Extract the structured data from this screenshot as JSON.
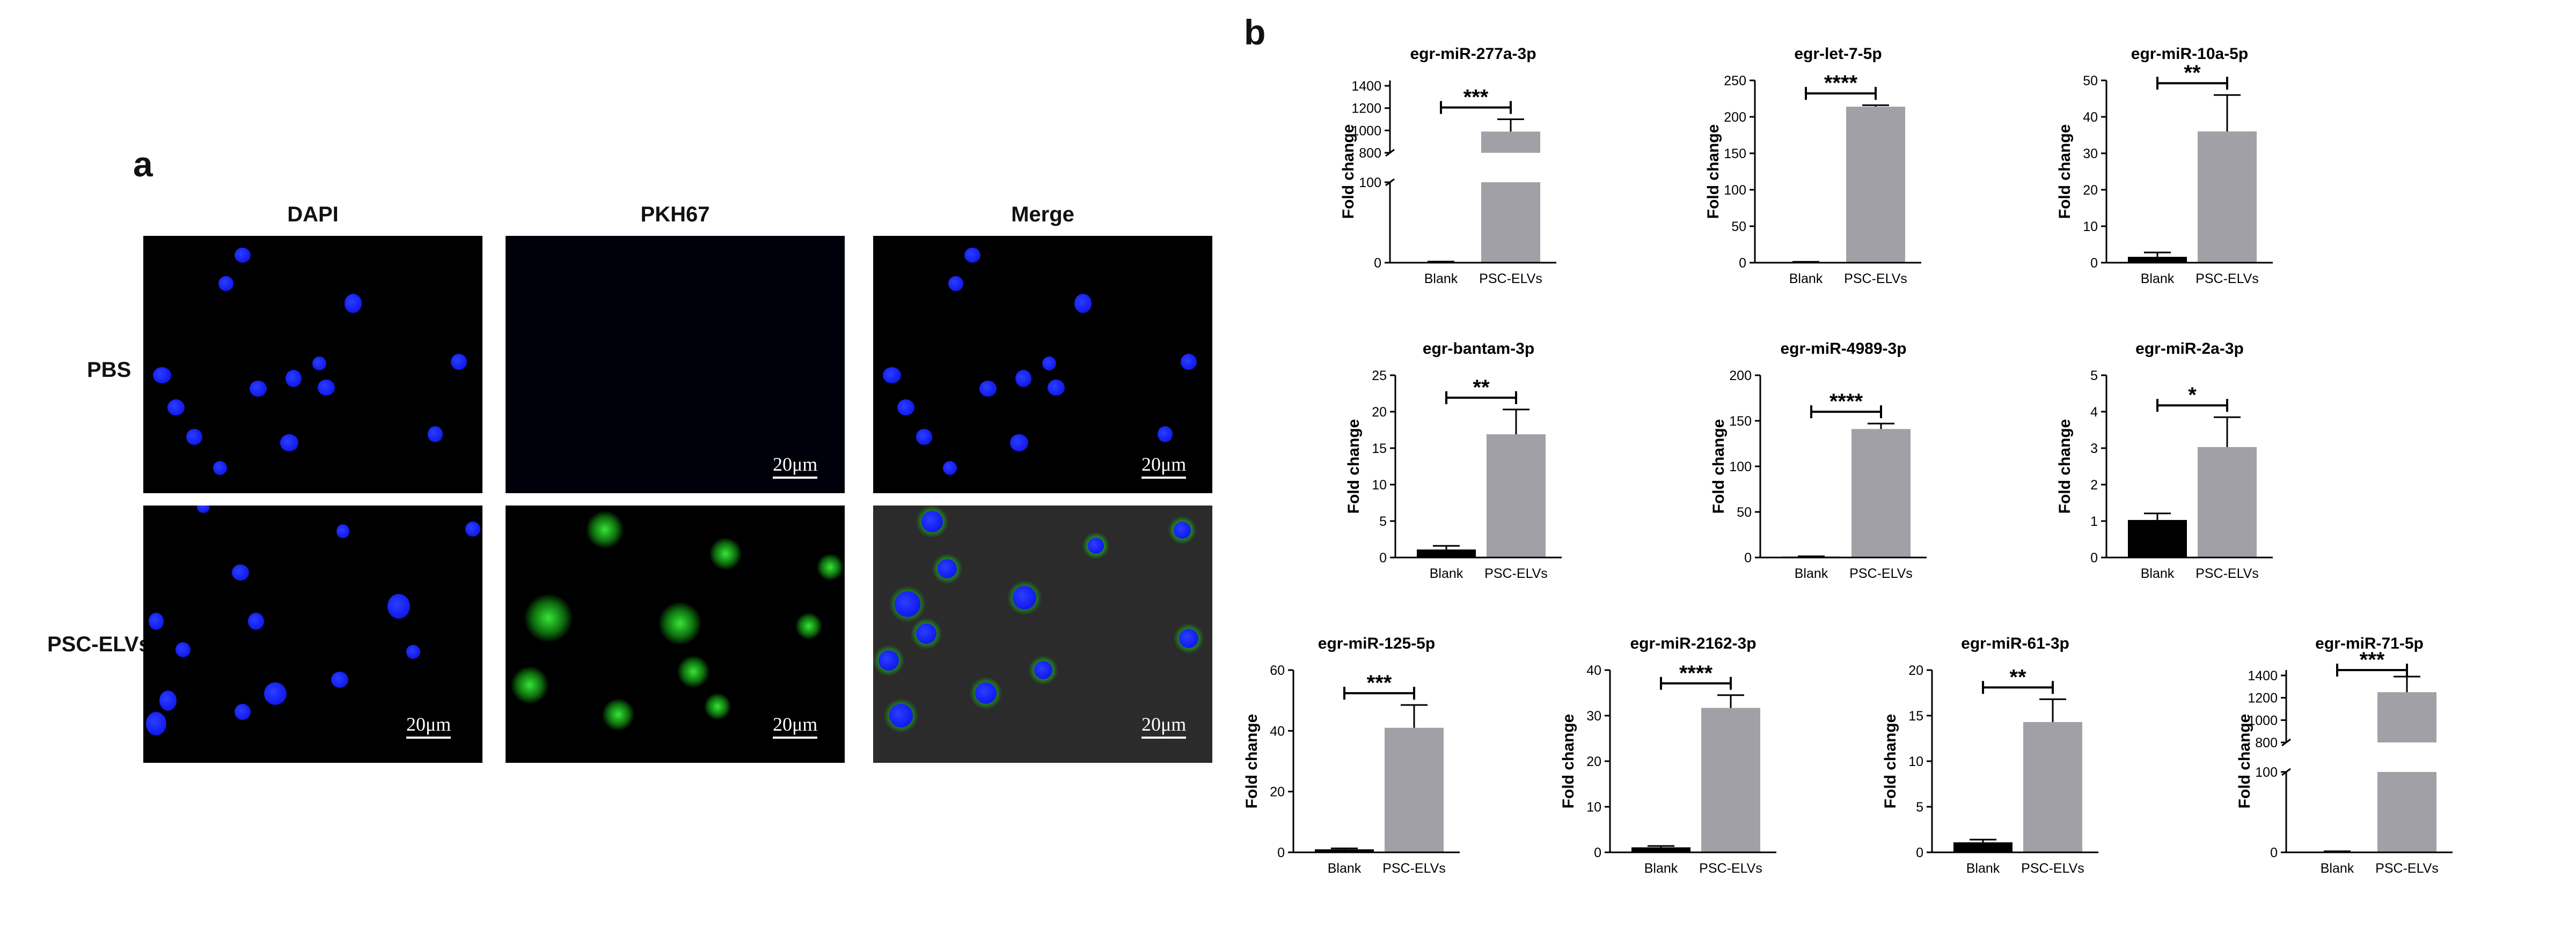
{
  "panel_a": {
    "letter": "a",
    "columns": [
      "DAPI",
      "PKH67",
      "Merge"
    ],
    "rows": [
      "PBS",
      "PSC-ELVs"
    ],
    "scale_bar": "20μm"
  },
  "panel_b": {
    "letter": "b"
  },
  "colors": {
    "blank": "#000000",
    "psc": "#a0a0a6",
    "dapi": "#1a24ff",
    "pkh67": "#2fdc2f"
  },
  "chart_data": [
    {
      "type": "bar",
      "title": "egr-miR-277a-3p",
      "ylabel": "Fold change",
      "categories": [
        "Blank",
        "PSC-ELVs"
      ],
      "values": [
        1,
        990
      ],
      "errors": [
        0.3,
        110
      ],
      "significance": "***",
      "broken_axis": true,
      "ylim": [
        0,
        1500
      ],
      "lower_ticks": [
        "0",
        "100"
      ],
      "upper_ticks": [
        "800",
        "1000",
        "1200",
        "1400"
      ]
    },
    {
      "type": "bar",
      "title": "egr-let-7-5p",
      "ylabel": "Fold change",
      "categories": [
        "Blank",
        "PSC-ELVs"
      ],
      "values": [
        1,
        214
      ],
      "errors": [
        0.2,
        2
      ],
      "significance": "****",
      "ylim": [
        0,
        250
      ],
      "ticks": [
        "0",
        "50",
        "100",
        "150",
        "200",
        "250"
      ]
    },
    {
      "type": "bar",
      "title": "egr-miR-10a-5p",
      "ylabel": "Fold change",
      "categories": [
        "Blank",
        "PSC-ELVs"
      ],
      "values": [
        1.6,
        36
      ],
      "errors": [
        1.2,
        10
      ],
      "significance": "**",
      "ylim": [
        0,
        50
      ],
      "ticks": [
        "0",
        "10",
        "20",
        "30",
        "40",
        "50"
      ]
    },
    {
      "type": "bar",
      "title": "egr-bantam-3p",
      "ylabel": "Fold change",
      "categories": [
        "Blank",
        "PSC-ELVs"
      ],
      "values": [
        1.1,
        16.9
      ],
      "errors": [
        0.5,
        3.4
      ],
      "significance": "**",
      "ylim": [
        0,
        25
      ],
      "ticks": [
        "0",
        "5",
        "10",
        "15",
        "20",
        "25"
      ]
    },
    {
      "type": "bar",
      "title": "egr-miR-4989-3p",
      "ylabel": "Fold change",
      "categories": [
        "Blank",
        "PSC-ELVs"
      ],
      "values": [
        1,
        141
      ],
      "errors": [
        0.3,
        6
      ],
      "significance": "****",
      "ylim": [
        0,
        200
      ],
      "ticks": [
        "0",
        "50",
        "100",
        "150",
        "200"
      ]
    },
    {
      "type": "bar",
      "title": "egr-miR-2a-3p",
      "ylabel": "Fold change",
      "categories": [
        "Blank",
        "PSC-ELVs"
      ],
      "values": [
        1.03,
        3.03
      ],
      "errors": [
        0.18,
        0.82
      ],
      "significance": "*",
      "ylim": [
        0,
        5
      ],
      "ticks": [
        "0",
        "1",
        "2",
        "3",
        "4",
        "5"
      ]
    },
    {
      "type": "bar",
      "title": "egr-miR-125-5p",
      "ylabel": "Fold change",
      "categories": [
        "Blank",
        "PSC-ELVs"
      ],
      "values": [
        1,
        41
      ],
      "errors": [
        0.3,
        7.5
      ],
      "significance": "***",
      "ylim": [
        0,
        60
      ],
      "ticks": [
        "0",
        "20",
        "40",
        "60"
      ]
    },
    {
      "type": "bar",
      "title": "egr-miR-2162-3p",
      "ylabel": "Fold change",
      "categories": [
        "Blank",
        "PSC-ELVs"
      ],
      "values": [
        1.1,
        31.7
      ],
      "errors": [
        0.3,
        2.8
      ],
      "significance": "****",
      "ylim": [
        0,
        40
      ],
      "ticks": [
        "0",
        "10",
        "20",
        "30",
        "40"
      ]
    },
    {
      "type": "bar",
      "title": "egr-miR-61-3p",
      "ylabel": "Fold change",
      "categories": [
        "Blank",
        "PSC-ELVs"
      ],
      "values": [
        1.1,
        14.3
      ],
      "errors": [
        0.3,
        2.5
      ],
      "significance": "**",
      "ylim": [
        0,
        20
      ],
      "ticks": [
        "0",
        "5",
        "10",
        "15",
        "20"
      ]
    },
    {
      "type": "bar",
      "title": "egr-miR-71-5p",
      "ylabel": "Fold change",
      "categories": [
        "Blank",
        "PSC-ELVs"
      ],
      "values": [
        1,
        1250
      ],
      "errors": [
        0.3,
        140
      ],
      "significance": "***",
      "broken_axis": true,
      "ylim": [
        0,
        1500
      ],
      "lower_ticks": [
        "0",
        "100"
      ],
      "upper_ticks": [
        "800",
        "1000",
        "1200",
        "1400"
      ]
    }
  ]
}
